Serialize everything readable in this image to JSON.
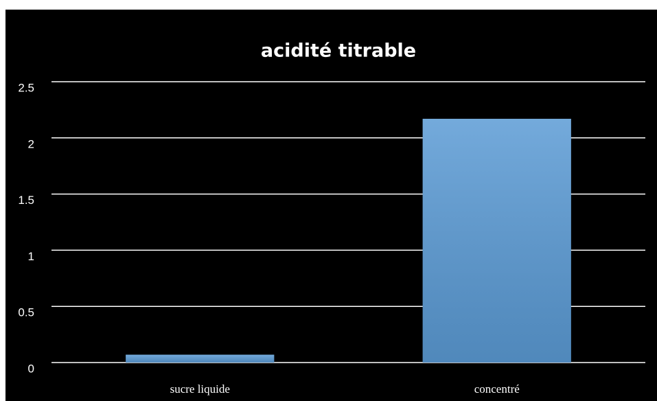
{
  "chart_data": {
    "type": "bar",
    "title": "acidité titrable",
    "categories": [
      "sucre liquide",
      "concentré"
    ],
    "values": [
      0.07,
      2.17
    ],
    "color": "#5b9bd5",
    "ylim": [
      0,
      2.5
    ],
    "yticks": [
      0,
      0.5,
      1,
      1.5,
      2,
      2.5
    ],
    "grid": true
  }
}
